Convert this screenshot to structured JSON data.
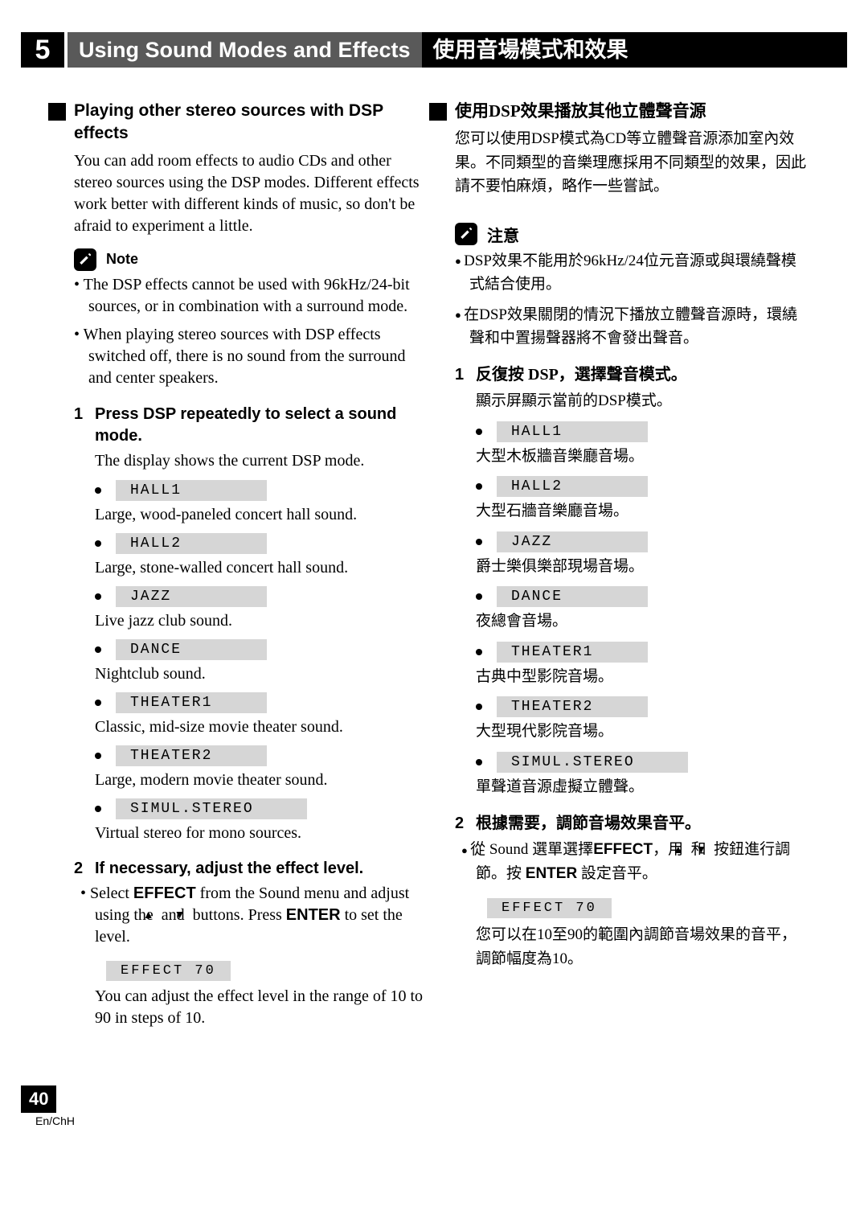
{
  "chapter": {
    "number": "5",
    "title_en": "Using Sound Modes and Effects",
    "title_zh": "使用音場模式和效果"
  },
  "colors": {
    "bar_bg": "#000000",
    "bar_en_bg": "#595959",
    "scene_bg": "#d6d6d6",
    "text": "#000000"
  },
  "left": {
    "section_title": "Playing other stereo sources with DSP effects",
    "intro": "You can add room effects to audio CDs and other stereo sources using the DSP modes. Different effects work better with different kinds of music, so don't be afraid to experiment a little.",
    "note_label": "Note",
    "note_bullets": [
      "The DSP effects cannot be used with 96kHz/24-bit sources, or in combination with a surround mode.",
      "When playing stereo sources with DSP effects switched off, there is no sound from the surround and center speakers."
    ],
    "step1_num": "1",
    "step1_title": "Press DSP repeatedly to select a sound mode.",
    "step1_body": "The display shows the current DSP mode.",
    "scenes": [
      {
        "label": "HALL1",
        "desc": "Large, wood-paneled concert hall sound."
      },
      {
        "label": "HALL2",
        "desc": "Large, stone-walled concert hall sound."
      },
      {
        "label": "JAZZ",
        "desc": "Live jazz club sound."
      },
      {
        "label": "DANCE",
        "desc": "Nightclub sound."
      },
      {
        "label": "THEATER1",
        "desc": "Classic, mid-size movie theater sound."
      },
      {
        "label": "THEATER2",
        "desc": "Large, modern movie theater sound."
      },
      {
        "label": "SIMUL.STEREO",
        "desc": "Virtual stereo for mono sources."
      }
    ],
    "step2_num": "2",
    "step2_title": "If necessary, adjust the effect level.",
    "step2_bullet_pre": "Select ",
    "step2_bullet_bold1": "EFFECT",
    "step2_bullet_mid": " from the Sound menu and adjust using the ",
    "step2_bullet_mid2": " and ",
    "step2_bullet_mid3": " buttons. Press ",
    "step2_bullet_bold2": "ENTER",
    "step2_bullet_end": " to set the level.",
    "effect_label": "EFFECT  70",
    "step2_after": "You can adjust the effect level in the range of 10 to 90 in steps of 10."
  },
  "right": {
    "section_title": "使用DSP效果播放其他立體聲音源",
    "intro": "您可以使用DSP模式為CD等立體聲音源添加室內效果。不同類型的音樂理應採用不同類型的效果，因此請不要怕麻煩，略作一些嘗試。",
    "note_label": "注意",
    "note_bullets": [
      "DSP效果不能用於96kHz/24位元音源或與環繞聲模式結合使用。",
      "在DSP效果關閉的情況下播放立體聲音源時，環繞聲和中置揚聲器將不會發出聲音。"
    ],
    "step1_num": "1",
    "step1_title": "反復按 DSP，選擇聲音模式。",
    "step1_body": "顯示屏顯示當前的DSP模式。",
    "scenes": [
      {
        "label": "HALL1",
        "desc": "大型木板牆音樂廳音場。"
      },
      {
        "label": "HALL2",
        "desc": "大型石牆音樂廳音場。"
      },
      {
        "label": "JAZZ",
        "desc": "爵士樂俱樂部現場音場。"
      },
      {
        "label": "DANCE",
        "desc": "夜總會音場。"
      },
      {
        "label": "THEATER1",
        "desc": "古典中型影院音場。"
      },
      {
        "label": "THEATER2",
        "desc": "大型現代影院音場。"
      },
      {
        "label": "SIMUL.STEREO",
        "desc": "單聲道音源虛擬立體聲。"
      }
    ],
    "step2_num": "2",
    "step2_title": "根據需要，調節音場效果音平。",
    "step2_bullet_pre": "從 Sound 選單選擇",
    "step2_bullet_bold1": "EFFECT",
    "step2_bullet_mid": "，用 ",
    "step2_bullet_mid2": " 和 ",
    "step2_bullet_mid3": " 按鈕進行調節。按 ",
    "step2_bullet_bold2": "ENTER",
    "step2_bullet_end": " 設定音平。",
    "effect_label": "EFFECT  70",
    "step2_after": "您可以在10至90的範圍內調節音場效果的音平，調節幅度為10。"
  },
  "footer": {
    "page": "40",
    "lang": "En/ChH"
  }
}
